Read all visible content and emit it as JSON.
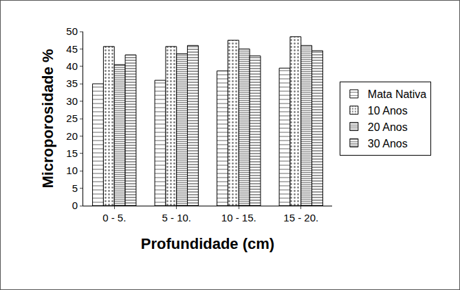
{
  "chart_data": {
    "type": "bar",
    "x_label": "Profundidade (cm)",
    "y_label": "Microporosidade %",
    "categories": [
      "0 - 5.",
      "5 - 10.",
      "10 - 15.",
      "15 - 20."
    ],
    "series": [
      {
        "name": "Mata Nativa",
        "color": "#000000",
        "marker": "sparse-lines",
        "values": [
          35,
          36,
          38.7,
          39.5
        ]
      },
      {
        "name": "10 Anos",
        "color": "#000000",
        "marker": "dots",
        "values": [
          45.7,
          45.7,
          47.5,
          48.5
        ]
      },
      {
        "name": "20 Anos",
        "color": "#000000",
        "marker": "dense-lines",
        "values": [
          40.5,
          43.6,
          45,
          46
        ]
      },
      {
        "name": "30 Anos",
        "color": "#000000",
        "marker": "lines",
        "values": [
          43.3,
          46,
          43,
          44.5
        ]
      }
    ],
    "ylim": [
      0,
      50
    ],
    "yticks": [
      0,
      5,
      10,
      15,
      20,
      25,
      30,
      35,
      40,
      45,
      50
    ],
    "grid": false,
    "legend": "right"
  }
}
